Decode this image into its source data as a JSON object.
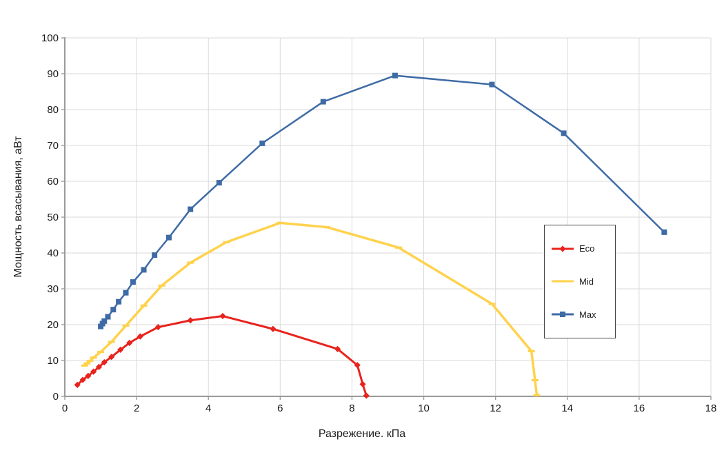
{
  "chart_data": {
    "type": "line",
    "title": "",
    "xlabel": "Разрежение. кПа",
    "ylabel": "Мощность всасывания, аВт",
    "xlim": [
      0,
      18
    ],
    "xstep": 2,
    "ylim": [
      0,
      100
    ],
    "ystep": 10,
    "grid": true,
    "legend_position": "right-inside",
    "axis_color": "#9a9a9a",
    "grid_color": "#d9d9d9",
    "series": [
      {
        "name": "Eco",
        "color": "#e8231d",
        "marker": "diamond",
        "line_width": 3,
        "points": [
          [
            0.35,
            3.2
          ],
          [
            0.5,
            4.6
          ],
          [
            0.65,
            5.7
          ],
          [
            0.8,
            6.9
          ],
          [
            0.95,
            8.2
          ],
          [
            1.1,
            9.5
          ],
          [
            1.3,
            11.0
          ],
          [
            1.55,
            13.0
          ],
          [
            1.8,
            14.9
          ],
          [
            2.1,
            16.7
          ],
          [
            2.6,
            19.3
          ],
          [
            3.5,
            21.2
          ],
          [
            4.4,
            22.4
          ],
          [
            5.8,
            18.8
          ],
          [
            7.6,
            13.2
          ],
          [
            8.15,
            8.7
          ],
          [
            8.3,
            3.4
          ],
          [
            8.4,
            0.2
          ]
        ]
      },
      {
        "name": "Mid",
        "color": "#ffd24d",
        "marker": "dash",
        "line_width": 3.5,
        "points": [
          [
            0.55,
            8.6
          ],
          [
            0.62,
            9.2
          ],
          [
            0.7,
            9.9
          ],
          [
            0.8,
            10.8
          ],
          [
            1.0,
            12.4
          ],
          [
            1.3,
            15.2
          ],
          [
            1.7,
            19.7
          ],
          [
            2.2,
            25.3
          ],
          [
            2.7,
            30.9
          ],
          [
            3.5,
            37.3
          ],
          [
            4.5,
            43.0
          ],
          [
            6.0,
            48.4
          ],
          [
            7.3,
            47.2
          ],
          [
            9.3,
            41.5
          ],
          [
            11.9,
            25.8
          ],
          [
            13.0,
            12.6
          ],
          [
            13.1,
            4.5
          ],
          [
            13.15,
            0.3
          ]
        ]
      },
      {
        "name": "Max",
        "color": "#3e6ba5",
        "marker": "square",
        "line_width": 2.5,
        "points": [
          [
            1.0,
            19.5
          ],
          [
            1.05,
            20.3
          ],
          [
            1.1,
            21.0
          ],
          [
            1.2,
            22.2
          ],
          [
            1.35,
            24.2
          ],
          [
            1.5,
            26.4
          ],
          [
            1.7,
            28.9
          ],
          [
            1.9,
            31.9
          ],
          [
            2.2,
            35.3
          ],
          [
            2.5,
            39.4
          ],
          [
            2.9,
            44.3
          ],
          [
            3.5,
            52.2
          ],
          [
            4.3,
            59.6
          ],
          [
            5.5,
            70.6
          ],
          [
            7.2,
            82.2
          ],
          [
            9.2,
            89.5
          ],
          [
            11.9,
            87.0
          ],
          [
            13.9,
            73.4
          ],
          [
            16.7,
            45.8
          ]
        ]
      }
    ]
  }
}
